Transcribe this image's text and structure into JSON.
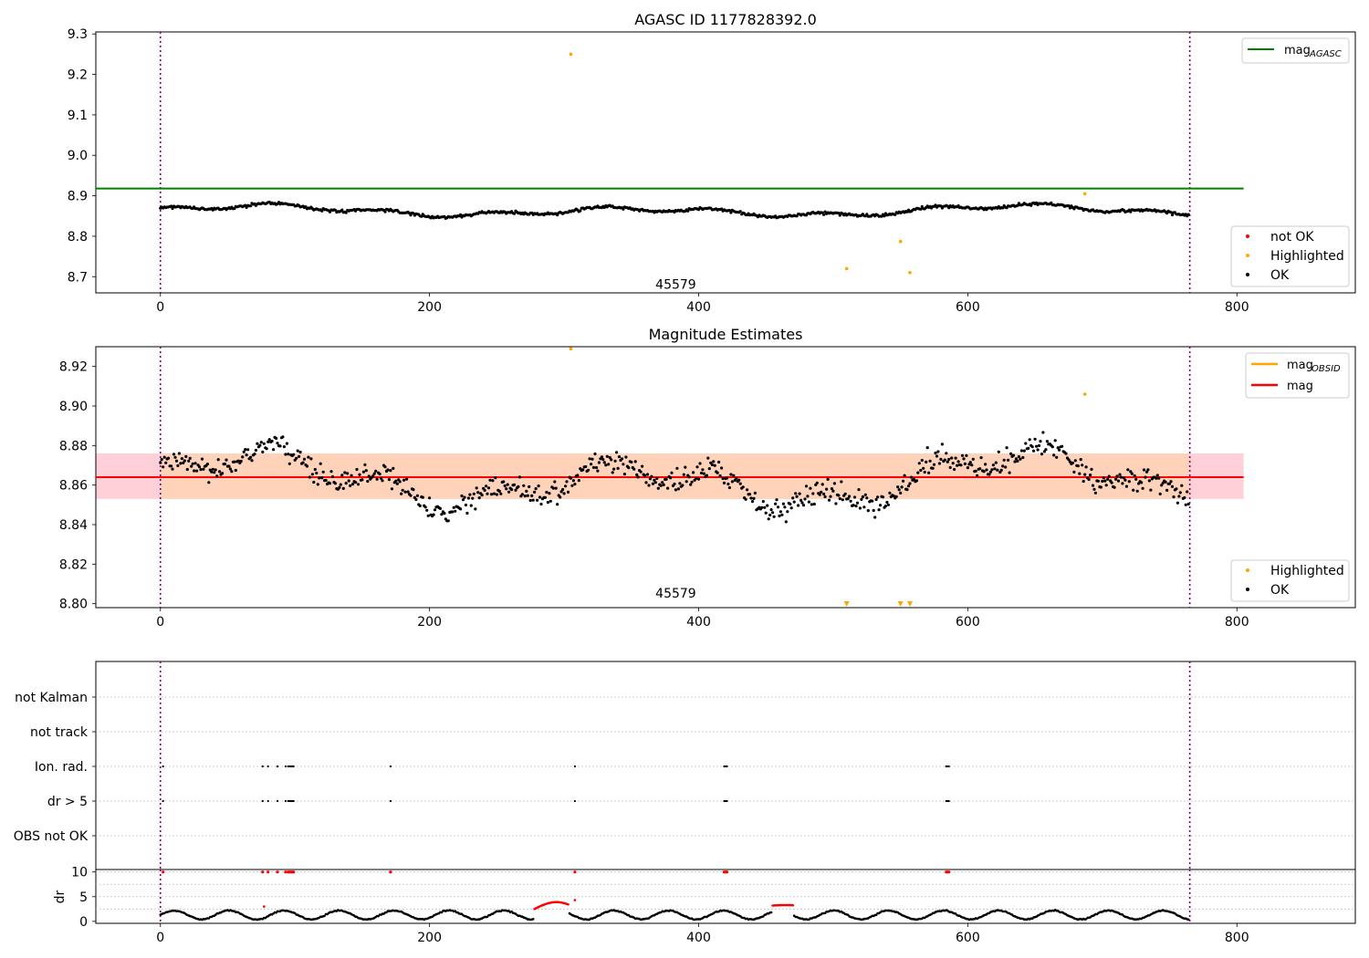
{
  "figure": {
    "chart_data": [
      {
        "type": "scatter",
        "title": "AGASC ID 1177828392.0",
        "xlim": [
          -48,
          888
        ],
        "ylim": [
          8.66,
          9.305
        ],
        "xticks": [
          "0",
          "200",
          "400",
          "600",
          "800"
        ],
        "yticks": [
          "8.7",
          "8.8",
          "8.9",
          "9.0",
          "9.1",
          "9.2",
          "9.3"
        ],
        "grid": false,
        "obsid_label": "45579",
        "vlines_x": [
          0,
          765
        ],
        "series": [
          {
            "name": "mag_AGASC",
            "kind": "hline",
            "y": 8.918,
            "x_range": [
              -48,
              805
            ],
            "color": "#008000"
          },
          {
            "name": "not OK",
            "kind": "points",
            "color": "#ff0000",
            "points": []
          },
          {
            "name": "Highlighted",
            "kind": "points",
            "color": "#ffa500",
            "points": [
              [
                305,
                9.25
              ],
              [
                510,
                8.72
              ],
              [
                550,
                8.787
              ],
              [
                557,
                8.71
              ],
              [
                687,
                8.905
              ]
            ]
          },
          {
            "name": "OK",
            "kind": "points-generated",
            "color": "#000000",
            "n": 765,
            "x_range": [
              0,
              765
            ]
          }
        ],
        "legend_top": {
          "placement": "upper right",
          "main": "mag",
          "sub": "AGASC"
        },
        "legend_bottom": {
          "placement": "lower right",
          "items": [
            "not OK",
            "Highlighted",
            "OK"
          ]
        }
      },
      {
        "type": "scatter",
        "title": "Magnitude Estimates",
        "xlim": [
          -48,
          888
        ],
        "ylim": [
          8.798,
          8.93
        ],
        "xticks": [
          "0",
          "200",
          "400",
          "600",
          "800"
        ],
        "yticks": [
          "8.80",
          "8.82",
          "8.84",
          "8.86",
          "8.88",
          "8.90",
          "8.92"
        ],
        "grid": false,
        "obsid_label": "45579",
        "vlines_x": [
          0,
          765
        ],
        "bands": [
          {
            "y": [
              8.853,
              8.876
            ],
            "x_range": [
              -48,
              805
            ],
            "color": "#ffc0cb"
          },
          {
            "y": [
              8.853,
              8.876
            ],
            "x_range": [
              0,
              765
            ],
            "color": "#ffd4b0"
          }
        ],
        "series": [
          {
            "name": "mag_OBSID",
            "kind": "hline",
            "y": 8.864,
            "x_range": [
              0,
              765
            ],
            "color": "#ffa500"
          },
          {
            "name": "mag",
            "kind": "hline",
            "y": 8.864,
            "x_range": [
              -48,
              805
            ],
            "color": "#ff0000"
          },
          {
            "name": "Highlighted",
            "kind": "points",
            "color": "#ffa500",
            "points": [
              [
                305,
                8.929
              ],
              [
                687,
                8.906
              ]
            ],
            "clipped_low_x": [
              510,
              550,
              557
            ]
          },
          {
            "name": "OK",
            "kind": "points-generated",
            "color": "#000000",
            "n": 765,
            "x_range": [
              0,
              765
            ]
          }
        ],
        "legend_top": {
          "placement": "upper right",
          "items": [
            {
              "main": "mag",
              "sub": "OBSID"
            },
            {
              "main": "mag",
              "sub": ""
            }
          ]
        },
        "legend_bottom": {
          "placement": "lower right",
          "items": [
            "Highlighted",
            "OK"
          ]
        }
      },
      {
        "type": "scatter",
        "title": "",
        "xlim": [
          -48,
          888
        ],
        "categories": [
          "not Kalman",
          "not track",
          "Ion. rad.",
          "dr > 5",
          "OBS not OK"
        ],
        "grid": true,
        "vlines_x": [
          0,
          765
        ],
        "flag_times": [
          2,
          76,
          80,
          87,
          93,
          95,
          96,
          97,
          98,
          99,
          171,
          308,
          419,
          420,
          421,
          584,
          585,
          586
        ],
        "flags": {
          "Ion. rad.": "flag_times",
          "dr > 5": "flag_times"
        }
      },
      {
        "type": "scatter",
        "title": "",
        "xlim": [
          -48,
          888
        ],
        "ylim": [
          -0.4,
          10.5
        ],
        "xticks": [
          "0",
          "200",
          "400",
          "600",
          "800"
        ],
        "yticks": [
          "0",
          "5",
          "10"
        ],
        "ylabel": "dr",
        "grid": true,
        "vlines_x": [
          0,
          765
        ],
        "series": [
          {
            "name": "dr ok",
            "color": "#000000",
            "kind": "points-generated",
            "x_range": [
              0,
              765
            ]
          },
          {
            "name": "dr flagged",
            "color": "#ff0000",
            "points_at_10_x": [
              2,
              76,
              80,
              87,
              93,
              95,
              96,
              97,
              98,
              99,
              171,
              308,
              419,
              420,
              421,
              584,
              585,
              586
            ],
            "arcs": [
              [
                278,
                303,
                2.5,
                3.9
              ],
              [
                455,
                470,
                3.2,
                3.3
              ]
            ],
            "singles": [
              [
                77,
                3.0
              ],
              [
                308,
                4.3
              ]
            ]
          }
        ]
      }
    ]
  }
}
